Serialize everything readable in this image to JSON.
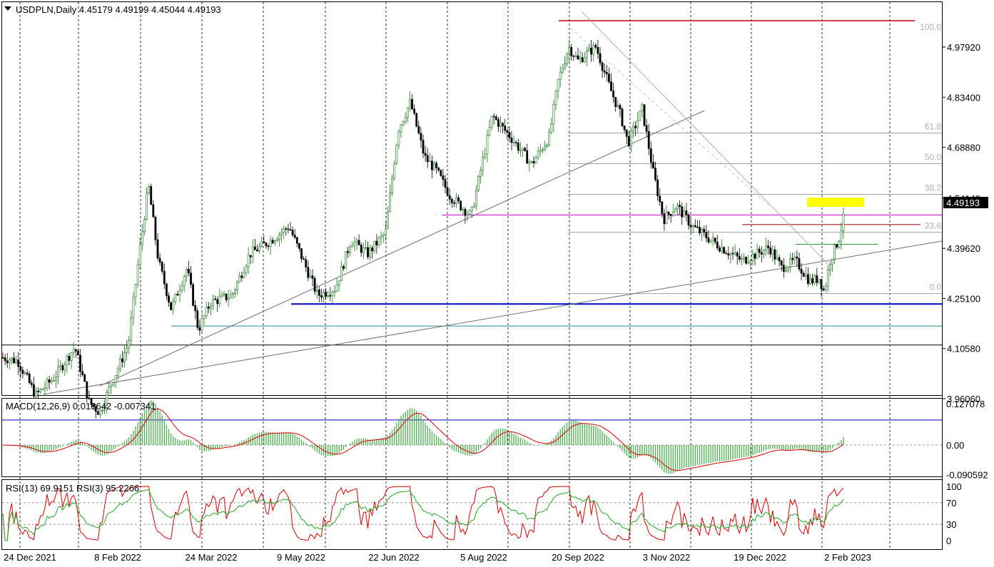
{
  "chart_data": {
    "type": "candlestick",
    "symbol_header": "USDPLN,Daily  4.45179 4.49199 4.45044 4.49193",
    "last_price": "4.49193",
    "price_ticks": [
      "4.97920",
      "4.83400",
      "4.68880",
      "4.54140",
      "4.39620",
      "4.25100",
      "4.10580",
      "3.96060"
    ],
    "price_tick_values": [
      4.9792,
      4.834,
      4.6888,
      4.5414,
      4.3962,
      4.251,
      4.1058,
      3.9606
    ],
    "ylim": [
      3.875,
      5.045
    ],
    "x_ticks": [
      "24 Dec 2021",
      "8 Feb 2022",
      "24 Mar 2022",
      "9 May 2022",
      "22 Jun 2022",
      "5 Aug 2022",
      "20 Sep 2022",
      "3 Nov 2022",
      "19 Dec 2022",
      "2 Feb 2023"
    ],
    "fibonacci": {
      "high": 5.018,
      "low": 4.265,
      "levels": [
        {
          "label": "100.0",
          "ratio": 1.0
        },
        {
          "label": "61.8",
          "ratio": 0.618
        },
        {
          "label": "50.0",
          "ratio": 0.5
        },
        {
          "label": "38.2",
          "ratio": 0.382
        },
        {
          "label": "23.6",
          "ratio": 0.236
        },
        {
          "label": "0.0",
          "ratio": 0.0
        }
      ]
    },
    "key_price_lines": [
      {
        "value": 4.235,
        "color": "#0000cc"
      },
      {
        "value": 4.493,
        "color": "#cc00cc"
      },
      {
        "value": 4.116,
        "color": "#000000"
      },
      {
        "value": 3.899,
        "color": "#0000cc"
      }
    ],
    "macd": {
      "header": "MACD(12,26,9) 0.018642 -0.007341",
      "ticks": [
        "0.127078",
        "0.00",
        "-0.090592"
      ],
      "tick_values": [
        0.127078,
        0.0,
        -0.090592
      ],
      "last_main": 0.018642,
      "last_signal": -0.007341
    },
    "rsi": {
      "header": "RSI(13) 69.9151  RSI(3) 95.2266",
      "ticks": [
        "100",
        "70",
        "30",
        "0"
      ],
      "tick_values": [
        100,
        70,
        30,
        0
      ],
      "last_rsi13": 69.9151,
      "last_rsi3": 95.2266
    },
    "colors": {
      "bull": "#1a7a1a",
      "bear": "#000000",
      "macd_hist": "#4caf50",
      "macd_signal": "#e00000",
      "rsi_long": "#22aa22",
      "rsi_short": "#dd0000",
      "highlight": "#ffff00"
    }
  }
}
